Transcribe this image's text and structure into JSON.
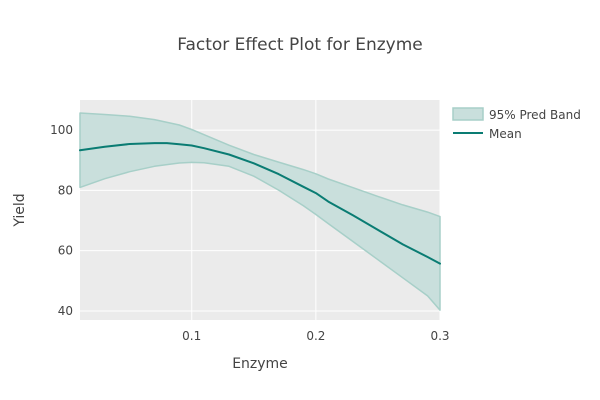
{
  "chart_data": {
    "type": "line",
    "title": "Factor Effect Plot for Enzyme",
    "xlabel": "Enzyme",
    "ylabel": "Yield",
    "xlim": [
      0.01,
      0.3
    ],
    "ylim": [
      37,
      110
    ],
    "x_ticks": [
      0.1,
      0.2,
      0.3
    ],
    "x_tick_labels": [
      "0.1",
      "0.2",
      "0.3"
    ],
    "y_ticks": [
      40,
      60,
      80,
      100
    ],
    "y_tick_labels": [
      "40",
      "60",
      "80",
      "100"
    ],
    "grid": true,
    "legend_position": "top-right",
    "series": [
      {
        "name": "95% Pred Band",
        "kind": "band",
        "color": "#a7cfc8",
        "fill": "#c9dfdc",
        "x": [
          0.01,
          0.03,
          0.05,
          0.07,
          0.09,
          0.1,
          0.11,
          0.13,
          0.15,
          0.17,
          0.19,
          0.2,
          0.21,
          0.23,
          0.25,
          0.27,
          0.29,
          0.3
        ],
        "upper": [
          105.7,
          105.2,
          104.6,
          103.5,
          101.7,
          100.2,
          98.5,
          95.0,
          91.9,
          89.4,
          86.9,
          85.5,
          83.8,
          80.9,
          78.0,
          75.2,
          72.8,
          71.3
        ],
        "lower": [
          81.0,
          83.9,
          86.2,
          88.0,
          89.1,
          89.3,
          89.2,
          88.0,
          84.7,
          80.1,
          74.9,
          72.0,
          69.0,
          63.0,
          57.0,
          51.0,
          45.0,
          40.3
        ]
      },
      {
        "name": "Mean",
        "kind": "line",
        "color": "#0a7c73",
        "x": [
          0.01,
          0.03,
          0.05,
          0.07,
          0.08,
          0.09,
          0.1,
          0.11,
          0.13,
          0.15,
          0.17,
          0.19,
          0.2,
          0.21,
          0.23,
          0.25,
          0.27,
          0.29,
          0.3
        ],
        "values": [
          93.3,
          94.5,
          95.4,
          95.7,
          95.7,
          95.3,
          94.9,
          94.0,
          91.9,
          89.0,
          85.4,
          81.2,
          79.1,
          76.3,
          71.7,
          66.9,
          62.1,
          57.9,
          55.7
        ]
      }
    ]
  }
}
